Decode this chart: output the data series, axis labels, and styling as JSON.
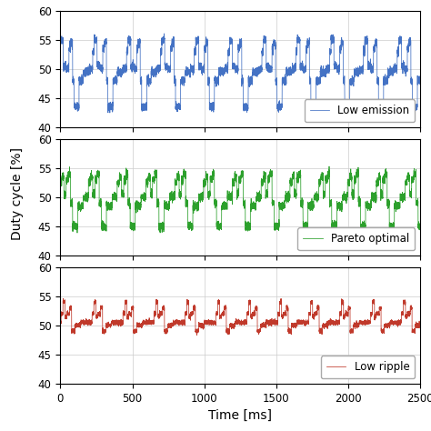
{
  "xlabel": "Time [ms]",
  "ylabel": "Duty cycle [%]",
  "xlim": [
    0,
    2500
  ],
  "ylim": [
    40,
    60
  ],
  "xticks": [
    0,
    500,
    1000,
    1500,
    2000,
    2500
  ],
  "yticks": [
    40,
    45,
    50,
    55,
    60
  ],
  "colors": {
    "blue": "#4472C4",
    "green": "#2CA02C",
    "red": "#C0392B"
  },
  "legend_labels": [
    "Low emission",
    "Pareto optimal",
    "Low ripple"
  ],
  "background_color": "#ffffff",
  "grid_color": "#cccccc"
}
